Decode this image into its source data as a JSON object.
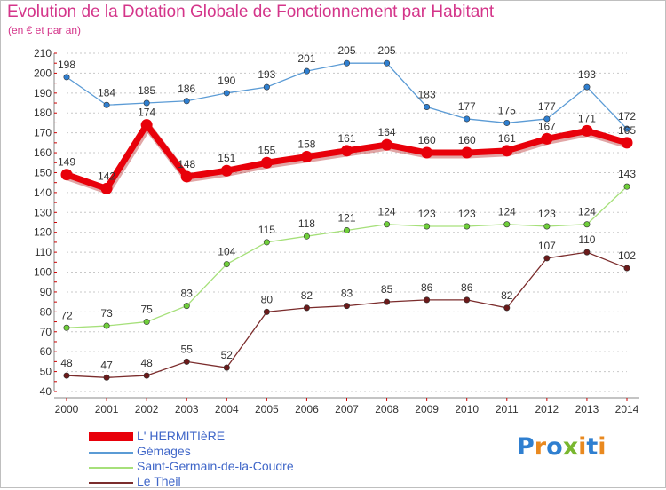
{
  "title": "Evolution de la Dotation Globale de Fonctionnement par Habitant",
  "subtitle": "(en € et par an)",
  "logo": {
    "text": "Proxiti",
    "colors": [
      "#2f7fd0",
      "#e9891f",
      "#2f7fd0",
      "#79b72f",
      "#e9891f",
      "#2f7fd0",
      "#e9891f"
    ]
  },
  "chart_data": {
    "type": "line",
    "title": "Evolution de la Dotation Globale de Fonctionnement par Habitant",
    "subtitle": "(en € et par an)",
    "x": [
      "2000",
      "2001",
      "2002",
      "2003",
      "2004",
      "2005",
      "2006",
      "2007",
      "2008",
      "2009",
      "2010",
      "2011",
      "2012",
      "2013",
      "2014"
    ],
    "ylim": [
      40,
      210
    ],
    "yticks": [
      40,
      50,
      60,
      70,
      80,
      90,
      100,
      110,
      120,
      130,
      140,
      150,
      160,
      170,
      180,
      190,
      200,
      210
    ],
    "grid": "horizontal-dashed",
    "legend_position": "bottom-left",
    "series": [
      {
        "name": "L' HERMITIèRE",
        "color": "#e8000a",
        "emphasis": true,
        "values": [
          149,
          142,
          174,
          148,
          151,
          155,
          158,
          161,
          164,
          160,
          160,
          161,
          167,
          171,
          165
        ]
      },
      {
        "name": "Gémages",
        "color": "#5b9bd5",
        "marker": "#2f7fd0",
        "emphasis": false,
        "values": [
          198,
          184,
          185,
          186,
          190,
          193,
          201,
          205,
          205,
          183,
          177,
          175,
          177,
          193,
          172
        ]
      },
      {
        "name": "Saint-Germain-de-la-Coudre",
        "color": "#a6e07a",
        "marker": "#6fcf3a",
        "emphasis": false,
        "values": [
          72,
          73,
          75,
          83,
          104,
          115,
          118,
          121,
          124,
          123,
          123,
          124,
          123,
          124,
          143
        ]
      },
      {
        "name": "Le Theil",
        "color": "#7b2c2c",
        "marker": "#6b1a1a",
        "emphasis": false,
        "values": [
          48,
          47,
          48,
          55,
          52,
          80,
          82,
          83,
          85,
          86,
          86,
          82,
          107,
          110,
          102
        ]
      }
    ]
  }
}
